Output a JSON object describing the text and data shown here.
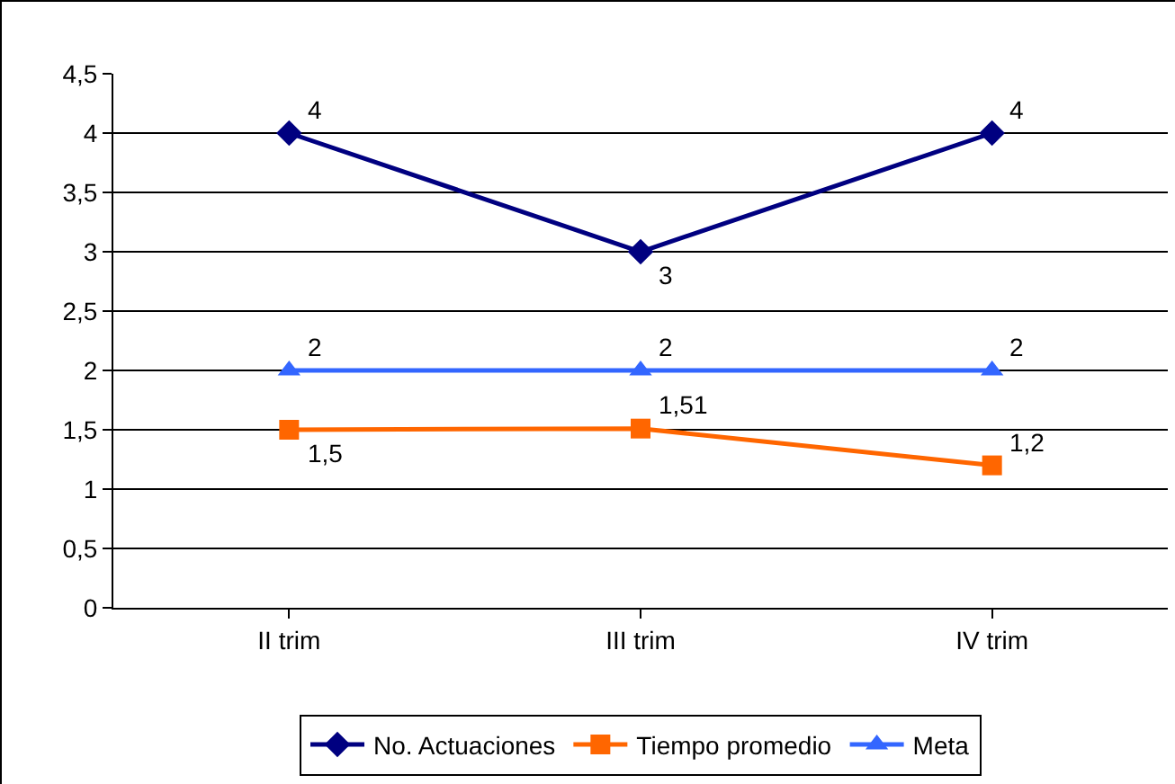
{
  "chart_data": {
    "type": "line",
    "categories": [
      "II trim",
      "III trim",
      "IV trim"
    ],
    "series": [
      {
        "name": "No. Actuaciones",
        "color": "#000080",
        "marker": "diamond",
        "values": [
          4,
          3,
          4
        ],
        "value_labels": [
          "4",
          "3",
          "4"
        ]
      },
      {
        "name": "Tiempo promedio",
        "color": "#ff6600",
        "marker": "square",
        "values": [
          1.5,
          1.51,
          1.2
        ],
        "value_labels": [
          "1,5",
          "1,51",
          "1,2"
        ]
      },
      {
        "name": "Meta",
        "color": "#3366ff",
        "marker": "triangle",
        "values": [
          2,
          2,
          2
        ],
        "value_labels": [
          "2",
          "2",
          "2"
        ]
      }
    ],
    "ylim": [
      0,
      4.5
    ],
    "yticks": [
      0,
      {
        "value": 0.5,
        "label": "0,5"
      },
      1,
      {
        "value": 1.5,
        "label": "1,5"
      },
      2,
      {
        "value": 2.5,
        "label": "2,5"
      },
      3,
      {
        "value": 3.5,
        "label": "3,5"
      },
      4,
      {
        "value": 4.5,
        "label": "4,5"
      }
    ],
    "grid": "y",
    "legend": "bottom",
    "line_style": "solid"
  }
}
